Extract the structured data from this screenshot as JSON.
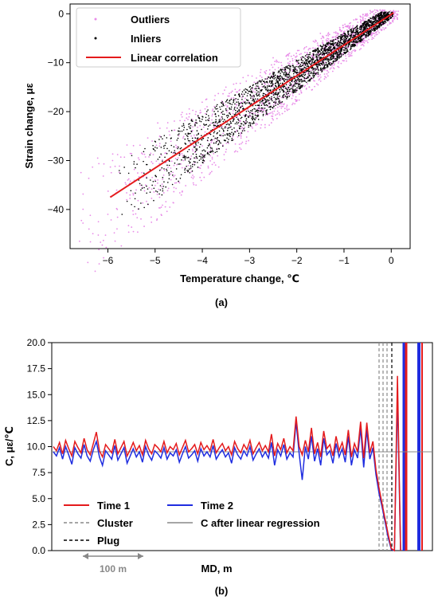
{
  "chart_data": [
    {
      "type": "scatter",
      "panel_label": "(a)",
      "xlabel": "Temperature change, ℃",
      "ylabel": "Strain change, με",
      "xlim": [
        -6.8,
        0.4
      ],
      "ylim": [
        -48,
        2
      ],
      "xticks": [
        -6,
        -5,
        -4,
        -3,
        -2,
        -1,
        0
      ],
      "yticks": [
        -40,
        -30,
        -20,
        -10,
        0
      ],
      "grid": false,
      "legend_position": "top-left",
      "series": [
        {
          "name": "Outliers",
          "kind": "scatter",
          "color": "#e88be8",
          "points": [
            [
              -6.6,
              -46.5
            ],
            [
              -6.4,
              -44
            ],
            [
              -6.2,
              -42.5
            ],
            [
              -6.0,
              -41
            ],
            [
              -5.8,
              -40
            ],
            [
              -5.6,
              -38
            ],
            [
              -5.4,
              -36
            ],
            [
              -5.2,
              -35
            ],
            [
              -5.0,
              -34
            ],
            [
              -4.8,
              -32
            ],
            [
              -4.6,
              -31
            ],
            [
              -4.4,
              -30
            ],
            [
              -4.2,
              -28
            ],
            [
              -4.0,
              -27
            ],
            [
              -3.8,
              -26
            ],
            [
              -3.6,
              -25
            ],
            [
              -3.4,
              -23
            ],
            [
              -3.2,
              -22
            ],
            [
              -3.0,
              -21
            ],
            [
              -2.8,
              -19
            ],
            [
              -2.6,
              -18
            ],
            [
              -2.4,
              -17
            ],
            [
              -2.2,
              -15
            ],
            [
              -2.0,
              -14
            ],
            [
              -1.8,
              -13
            ],
            [
              -1.6,
              -12
            ],
            [
              -1.4,
              -10
            ],
            [
              -1.2,
              -9
            ],
            [
              -1.0,
              -7
            ],
            [
              -0.8,
              -6
            ],
            [
              -0.6,
              -5
            ],
            [
              -0.4,
              -3
            ],
            [
              -0.2,
              -2
            ],
            [
              0.0,
              -0.5
            ],
            [
              0.1,
              0.5
            ],
            [
              -5.9,
              -30
            ],
            [
              -4.9,
              -25
            ],
            [
              -3.9,
              -19
            ],
            [
              -2.9,
              -14
            ],
            [
              -1.9,
              -9
            ],
            [
              -0.9,
              -4.5
            ],
            [
              -2.5,
              -9
            ],
            [
              -1.5,
              -4
            ],
            [
              -3.5,
              -15
            ]
          ]
        },
        {
          "name": "Inliers",
          "kind": "scatter",
          "color": "#000000",
          "points": [
            [
              -5.7,
              -41
            ],
            [
              -5.5,
              -39
            ],
            [
              -5.3,
              -36
            ],
            [
              -5.1,
              -34
            ],
            [
              -4.9,
              -32
            ],
            [
              -4.7,
              -30
            ],
            [
              -4.5,
              -28.5
            ],
            [
              -4.3,
              -27
            ],
            [
              -4.1,
              -26
            ],
            [
              -3.9,
              -24.5
            ],
            [
              -3.7,
              -23
            ],
            [
              -3.5,
              -22
            ],
            [
              -3.3,
              -20.5
            ],
            [
              -3.1,
              -19.5
            ],
            [
              -2.9,
              -18
            ],
            [
              -2.7,
              -17
            ],
            [
              -2.5,
              -15.5
            ],
            [
              -2.3,
              -14.5
            ],
            [
              -2.1,
              -13
            ],
            [
              -1.9,
              -12
            ],
            [
              -1.7,
              -11
            ],
            [
              -1.5,
              -9.5
            ],
            [
              -1.3,
              -8.5
            ],
            [
              -1.1,
              -7
            ],
            [
              -0.9,
              -6
            ],
            [
              -0.7,
              -5
            ],
            [
              -0.5,
              -3.5
            ],
            [
              -0.3,
              -2.5
            ],
            [
              -0.1,
              -1
            ],
            [
              -5.0,
              -28
            ],
            [
              -4.5,
              -24
            ],
            [
              -4.0,
              -21
            ],
            [
              -3.5,
              -18
            ],
            [
              -3.0,
              -15
            ],
            [
              -2.5,
              -12
            ],
            [
              -2.0,
              -9.5
            ],
            [
              -1.5,
              -6.5
            ],
            [
              -1.0,
              -4
            ],
            [
              -0.5,
              -2
            ]
          ]
        },
        {
          "name": "Linear correlation",
          "kind": "line",
          "color": "#e41a1c",
          "points": [
            [
              -5.95,
              -37.5
            ],
            [
              0.05,
              0.2
            ]
          ]
        }
      ]
    },
    {
      "type": "line",
      "panel_label": "(b)",
      "xlabel": "MD, m",
      "ylabel": "C, με/℃",
      "ylim": [
        0.0,
        20.0
      ],
      "yticks": [
        "0.0",
        "2.5",
        "5.0",
        "7.5",
        "10.0",
        "12.5",
        "15.0",
        "17.5",
        "20.0"
      ],
      "grid": false,
      "scale_bar_label": "100 m",
      "legend_position": "bottom-left",
      "reference_value": 9.5,
      "series": [
        {
          "name": "Time 1",
          "color": "#e41a1c",
          "values": [
            10.0,
            9.6,
            10.4,
            9.3,
            10.6,
            9.8,
            9.1,
            10.5,
            9.9,
            9.4,
            10.8,
            9.7,
            9.2,
            10.3,
            11.4,
            9.6,
            9.0,
            10.2,
            9.8,
            9.4,
            10.7,
            9.3,
            9.9,
            10.5,
            9.1,
            9.7,
            10.4,
            9.6,
            10.1,
            9.2,
            10.6,
            9.8,
            9.3,
            10.2,
            9.9,
            9.5,
            10.5,
            9.4,
            10.0,
            9.7,
            10.3,
            9.2,
            9.9,
            10.6,
            9.5,
            9.8,
            10.2,
            9.3,
            10.4,
            9.7,
            10.1,
            9.6,
            10.7,
            9.4,
            9.9,
            10.3,
            9.6,
            10.0,
            9.2,
            10.5,
            9.8,
            9.4,
            10.2,
            9.7,
            10.6,
            9.3,
            9.9,
            10.4,
            9.6,
            10.1,
            9.5,
            11.2,
            9.1,
            10.3,
            9.7,
            10.8,
            9.4,
            10.0,
            9.6,
            12.9,
            10.0,
            9.2,
            10.6,
            9.5,
            11.8,
            9.3,
            10.4,
            9.0,
            11.5,
            9.8,
            10.2,
            9.1,
            11.0,
            9.6,
            10.4,
            9.2,
            11.6,
            9.0,
            10.3,
            9.5,
            12.4,
            8.9,
            12.3,
            9.4,
            10.5,
            7.8,
            6.0,
            4.5,
            3.0,
            1.5,
            0.2,
            0.0,
            16.8,
            0.0
          ]
        },
        {
          "name": "Time 2",
          "color": "#1f2de0",
          "values": [
            9.5,
            9.1,
            9.9,
            8.8,
            10.0,
            9.2,
            8.3,
            9.9,
            9.3,
            8.9,
            10.2,
            9.1,
            8.6,
            9.7,
            10.5,
            9.0,
            8.2,
            9.6,
            9.2,
            8.8,
            10.1,
            8.7,
            9.3,
            9.9,
            8.4,
            9.1,
            9.8,
            9.0,
            9.5,
            8.5,
            10.0,
            9.2,
            8.7,
            9.6,
            9.3,
            8.9,
            9.9,
            8.8,
            9.4,
            9.1,
            9.7,
            8.5,
            9.3,
            10.0,
            8.9,
            9.2,
            9.6,
            8.6,
            9.8,
            9.1,
            9.5,
            9.0,
            10.1,
            8.8,
            9.3,
            9.7,
            9.0,
            9.4,
            8.4,
            9.9,
            9.2,
            8.8,
            9.6,
            9.1,
            10.0,
            8.7,
            9.3,
            9.8,
            9.0,
            9.5,
            8.9,
            10.4,
            8.2,
            9.7,
            9.1,
            10.2,
            8.8,
            9.4,
            9.0,
            12.4,
            9.3,
            6.8,
            10.0,
            8.8,
            11.0,
            8.6,
            9.8,
            8.2,
            10.8,
            9.2,
            9.6,
            8.4,
            10.3,
            9.0,
            9.8,
            8.5,
            11.0,
            8.2,
            9.7,
            8.9,
            11.8,
            8.0,
            11.6,
            8.8,
            9.9,
            7.3,
            5.5,
            4.2,
            2.7,
            1.2,
            0.1,
            0.0,
            15.0,
            0.0
          ]
        }
      ],
      "vertical_lines": [
        {
          "name": "Cluster",
          "style": "dashed-gray"
        },
        {
          "name": "Plug",
          "style": "dashed-black"
        }
      ],
      "reference_line": {
        "name": "C after linear regression",
        "color": "#888888"
      }
    }
  ]
}
